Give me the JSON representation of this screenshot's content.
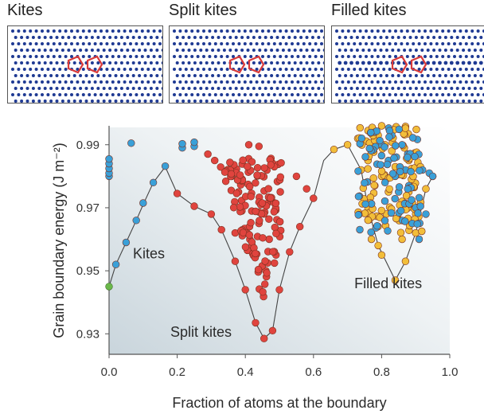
{
  "panels": [
    {
      "title": "Kites"
    },
    {
      "title": "Split kites"
    },
    {
      "title": "Filled kites"
    }
  ],
  "chart_data": {
    "type": "scatter",
    "xlabel": "Fraction of atoms at the boundary",
    "ylabel": "Grain boundary energy (J m⁻²)",
    "xlim": [
      0,
      1.0
    ],
    "ylim": [
      0.9235,
      0.9955
    ],
    "x_ticks": [
      "0.0",
      "0.2",
      "0.4",
      "0.6",
      "0.8",
      "1.0"
    ],
    "y_ticks": [
      "0.93",
      "0.95",
      "0.97",
      "0.99"
    ],
    "annotations": [
      {
        "text": "Kites",
        "x": 0.07,
        "y": 0.954
      },
      {
        "text": "Split kites",
        "x": 0.18,
        "y": 0.929
      },
      {
        "text": "Filled kites",
        "x": 0.72,
        "y": 0.9445
      }
    ],
    "colors": {
      "kites": "#3aa0d8",
      "split_kites": "#e0443e",
      "filled_kites": "#f2be3a",
      "start_point": "#6bb84a",
      "hull_line": "#444444",
      "marker_edge": "#7a3020",
      "lattice_dot": "#1f3a93",
      "kite_outline": "#d93a3a"
    },
    "hull_path": [
      [
        0.0,
        0.945
      ],
      [
        0.02,
        0.952
      ],
      [
        0.05,
        0.959
      ],
      [
        0.08,
        0.966
      ],
      [
        0.1,
        0.971
      ],
      [
        0.13,
        0.978
      ],
      [
        0.165,
        0.983
      ],
      [
        0.2,
        0.9745
      ],
      [
        0.25,
        0.9705
      ],
      [
        0.3,
        0.968
      ],
      [
        0.33,
        0.963
      ],
      [
        0.37,
        0.953
      ],
      [
        0.4,
        0.944
      ],
      [
        0.43,
        0.9335
      ],
      [
        0.455,
        0.9285
      ],
      [
        0.48,
        0.931
      ],
      [
        0.5,
        0.944
      ],
      [
        0.53,
        0.956
      ],
      [
        0.56,
        0.964
      ],
      [
        0.6,
        0.973
      ],
      [
        0.63,
        0.985
      ],
      [
        0.66,
        0.9885
      ],
      [
        0.7,
        0.99
      ],
      [
        0.74,
        0.982
      ],
      [
        0.76,
        0.97
      ],
      [
        0.79,
        0.958
      ],
      [
        0.84,
        0.947
      ],
      [
        0.87,
        0.953
      ],
      [
        0.9,
        0.962
      ],
      [
        0.93,
        0.976
      ],
      [
        0.95,
        0.98
      ]
    ],
    "series_kites": [
      [
        0.0,
        0.98
      ],
      [
        0.0,
        0.981
      ],
      [
        0.0,
        0.9825
      ],
      [
        0.0,
        0.984
      ],
      [
        0.0,
        0.9855
      ],
      [
        0.065,
        0.9905
      ],
      [
        0.02,
        0.952
      ],
      [
        0.05,
        0.959
      ],
      [
        0.08,
        0.966
      ],
      [
        0.1,
        0.9715
      ],
      [
        0.13,
        0.978
      ],
      [
        0.165,
        0.9832
      ],
      [
        0.215,
        0.989
      ],
      [
        0.215,
        0.9903
      ],
      [
        0.25,
        0.9895
      ],
      [
        0.25,
        0.9908
      ]
    ],
    "series_split_kites": [
      [
        0.2,
        0.9745
      ],
      [
        0.25,
        0.9705
      ],
      [
        0.29,
        0.987
      ],
      [
        0.3,
        0.968
      ],
      [
        0.31,
        0.985
      ],
      [
        0.33,
        0.963
      ],
      [
        0.36,
        0.98
      ],
      [
        0.37,
        0.953
      ],
      [
        0.37,
        0.962
      ],
      [
        0.38,
        0.975
      ],
      [
        0.39,
        0.969
      ],
      [
        0.4,
        0.944
      ],
      [
        0.43,
        0.9335
      ],
      [
        0.455,
        0.9285
      ],
      [
        0.48,
        0.931
      ],
      [
        0.5,
        0.944
      ],
      [
        0.53,
        0.956
      ],
      [
        0.56,
        0.964
      ],
      [
        0.6,
        0.973
      ],
      [
        0.55,
        0.98
      ],
      [
        0.58,
        0.976
      ],
      [
        0.46,
        0.95
      ],
      [
        0.47,
        0.96
      ],
      [
        0.44,
        0.965
      ],
      [
        0.42,
        0.958
      ],
      [
        0.49,
        0.955
      ],
      [
        0.41,
        0.99
      ],
      [
        0.44,
        0.9895
      ]
    ],
    "series_filled_kites": [
      [
        0.66,
        0.9885
      ],
      [
        0.7,
        0.99
      ],
      [
        0.73,
        0.992
      ],
      [
        0.76,
        0.9945
      ],
      [
        0.8,
        0.996
      ],
      [
        0.84,
        0.995
      ],
      [
        0.87,
        0.9958
      ],
      [
        0.74,
        0.982
      ],
      [
        0.76,
        0.97
      ],
      [
        0.79,
        0.958
      ],
      [
        0.84,
        0.947
      ],
      [
        0.87,
        0.953
      ],
      [
        0.9,
        0.962
      ],
      [
        0.93,
        0.976
      ],
      [
        0.95,
        0.98
      ],
      [
        0.76,
        0.985
      ],
      [
        0.78,
        0.977
      ],
      [
        0.8,
        0.98
      ],
      [
        0.82,
        0.975
      ],
      [
        0.84,
        0.983
      ],
      [
        0.86,
        0.972
      ],
      [
        0.88,
        0.985
      ],
      [
        0.9,
        0.968
      ],
      [
        0.81,
        0.99
      ],
      [
        0.83,
        0.988
      ],
      [
        0.79,
        0.993
      ],
      [
        0.88,
        0.975
      ],
      [
        0.77,
        0.96
      ],
      [
        0.8,
        0.955
      ],
      [
        0.86,
        0.96
      ]
    ],
    "series_kites_cluster": [
      [
        0.78,
        0.994
      ],
      [
        0.8,
        0.99
      ],
      [
        0.82,
        0.985
      ],
      [
        0.84,
        0.98
      ],
      [
        0.86,
        0.99
      ],
      [
        0.88,
        0.977
      ],
      [
        0.9,
        0.97
      ],
      [
        0.92,
        0.982
      ],
      [
        0.94,
        0.981
      ],
      [
        0.95,
        0.98
      ],
      [
        0.83,
        0.993
      ],
      [
        0.87,
        0.982
      ],
      [
        0.89,
        0.965
      ],
      [
        0.91,
        0.96
      ],
      [
        0.85,
        0.975
      ],
      [
        0.81,
        0.978
      ],
      [
        0.93,
        0.968
      ]
    ]
  }
}
